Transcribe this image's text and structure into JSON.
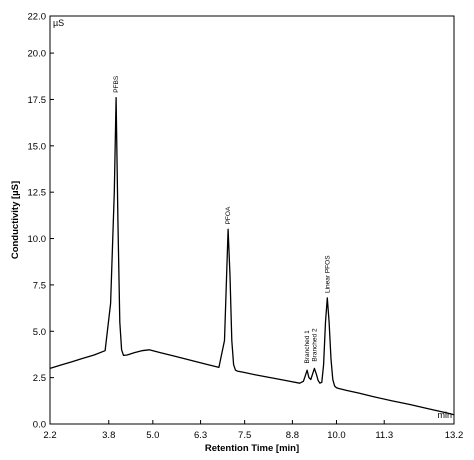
{
  "chart_data": {
    "type": "line",
    "xlabel": "Retention Time [min]",
    "ylabel": "Conductivity [µS]",
    "x_unit": "min",
    "y_unit": "µS",
    "xlim": [
      2.2,
      13.2
    ],
    "ylim": [
      0.0,
      22.0
    ],
    "x_ticks": [
      "2.2",
      "3.8",
      "5.0",
      "6.3",
      "7.5",
      "8.8",
      "10.0",
      "11.3",
      "13.2"
    ],
    "x_tick_values": [
      2.2,
      3.8,
      5.0,
      6.3,
      7.5,
      8.8,
      10.0,
      11.3,
      13.2
    ],
    "y_ticks": [
      "0.0",
      "2.5",
      "5.0",
      "7.5",
      "10.0",
      "12.5",
      "15.0",
      "17.5",
      "20.0",
      "22.0"
    ],
    "y_tick_values": [
      0.0,
      2.5,
      5.0,
      7.5,
      10.0,
      12.5,
      15.0,
      17.5,
      20.0,
      22.0
    ],
    "grid": false,
    "series": [
      {
        "x": [
          2.2,
          2.5,
          2.8,
          3.1,
          3.4,
          3.7,
          3.85,
          3.95,
          4.0,
          4.05,
          4.1,
          4.15,
          4.2,
          4.3,
          4.5,
          4.7,
          4.9,
          5.2,
          5.6,
          6.0,
          6.4,
          6.8,
          6.95,
          7.0,
          7.05,
          7.1,
          7.15,
          7.2,
          7.25,
          7.3,
          7.45,
          7.8,
          8.2,
          8.6,
          9.0,
          9.1,
          9.15,
          9.2,
          9.25,
          9.3,
          9.35,
          9.4,
          9.45,
          9.5,
          9.55,
          9.6,
          9.65,
          9.7,
          9.75,
          9.8,
          9.85,
          9.9,
          9.95,
          10.0,
          10.05,
          10.3,
          10.6,
          11.0,
          11.5,
          12.0,
          12.5,
          13.0,
          13.2
        ],
        "y": [
          3.0,
          3.18,
          3.36,
          3.54,
          3.72,
          3.95,
          6.5,
          12.5,
          17.6,
          11.0,
          5.5,
          4.0,
          3.7,
          3.72,
          3.85,
          3.95,
          4.0,
          3.85,
          3.65,
          3.45,
          3.25,
          3.05,
          4.5,
          7.5,
          10.5,
          8.0,
          4.5,
          3.2,
          2.9,
          2.85,
          2.8,
          2.65,
          2.5,
          2.35,
          2.2,
          2.3,
          2.6,
          2.9,
          2.5,
          2.4,
          2.7,
          3.0,
          2.7,
          2.35,
          2.2,
          2.25,
          3.2,
          5.5,
          6.8,
          5.5,
          3.5,
          2.4,
          2.05,
          1.95,
          1.92,
          1.8,
          1.67,
          1.48,
          1.25,
          1.05,
          0.82,
          0.6,
          0.5
        ]
      }
    ],
    "peak_labels": [
      {
        "text": "PFBS",
        "x": 4.0,
        "y": 17.7
      },
      {
        "text": "PFOA",
        "x": 7.05,
        "y": 10.6
      },
      {
        "text": "Branched 1",
        "x": 9.2,
        "y": 3.1
      },
      {
        "text": "Branched 2",
        "x": 9.4,
        "y": 3.2
      },
      {
        "text": "Linear PFOS",
        "x": 9.75,
        "y": 6.9
      }
    ]
  }
}
